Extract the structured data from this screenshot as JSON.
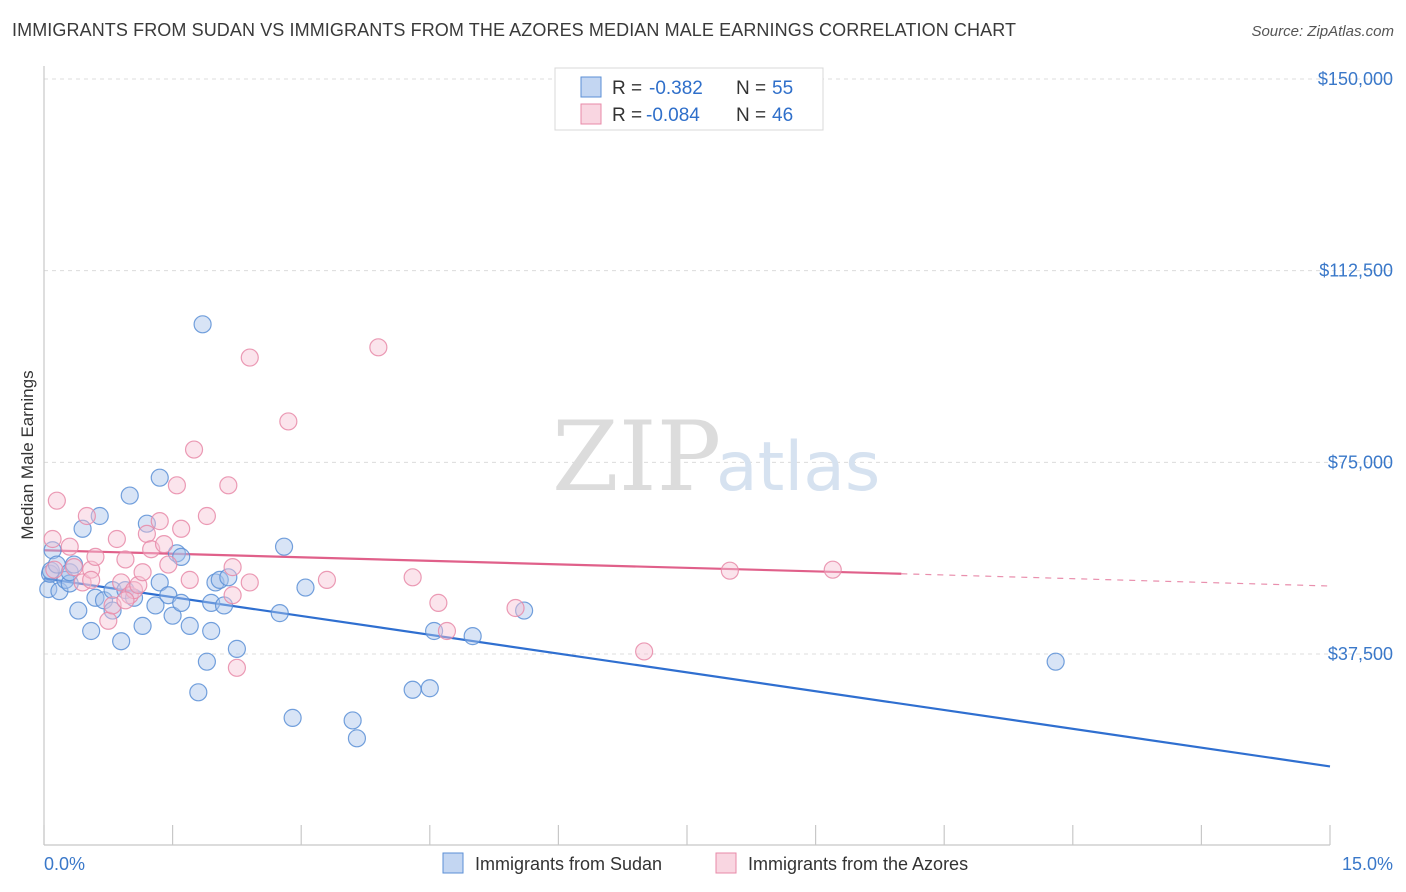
{
  "title": "IMMIGRANTS FROM SUDAN VS IMMIGRANTS FROM THE AZORES MEDIAN MALE EARNINGS CORRELATION CHART",
  "source": "Source: ZipAtlas.com",
  "watermark": {
    "zip": "ZIP",
    "atlas": "atlas"
  },
  "legend_top": {
    "rows": [
      {
        "r_label": "R =",
        "r_value": "-0.382",
        "n_label": "N =",
        "n_value": "55"
      },
      {
        "r_label": "R =",
        "r_value": "-0.084",
        "n_label": "N =",
        "n_value": "46"
      }
    ]
  },
  "chart_data": {
    "type": "scatter",
    "title": "IMMIGRANTS FROM SUDAN VS IMMIGRANTS FROM THE AZORES MEDIAN MALE EARNINGS CORRELATION CHART",
    "xlabel": "",
    "ylabel": "Median Male Earnings",
    "xlim": [
      0,
      15
    ],
    "ylim": [
      0,
      157000
    ],
    "x_tick_labels": [
      "0.0%",
      "15.0%"
    ],
    "y_ticks": [
      37500,
      75000,
      112500,
      150000
    ],
    "y_tick_labels": [
      "$37,500",
      "$75,000",
      "$112,500",
      "$150,000"
    ],
    "grid": true,
    "legend_position": "bottom-center",
    "series": [
      {
        "name": "Immigrants from Sudan",
        "color": "#5b8fd6",
        "fill": "#a9c4ec",
        "r": -0.382,
        "n": 55,
        "trend": {
          "x0": 0,
          "y0": 52300,
          "x1": 15,
          "y1": 15500,
          "style": "solid"
        },
        "points": [
          [
            0.05,
            50200
          ],
          [
            0.07,
            53200
          ],
          [
            0.08,
            53800
          ],
          [
            0.1,
            57800
          ],
          [
            0.15,
            55000
          ],
          [
            0.18,
            49800
          ],
          [
            0.25,
            52000
          ],
          [
            0.3,
            51300
          ],
          [
            0.3,
            53500
          ],
          [
            0.35,
            55000
          ],
          [
            0.4,
            46000
          ],
          [
            0.45,
            62000
          ],
          [
            0.55,
            42000
          ],
          [
            0.6,
            48500
          ],
          [
            0.65,
            64500
          ],
          [
            0.7,
            48000
          ],
          [
            0.8,
            50000
          ],
          [
            0.8,
            46000
          ],
          [
            0.9,
            40000
          ],
          [
            0.95,
            50000
          ],
          [
            1.0,
            68500
          ],
          [
            1.05,
            48500
          ],
          [
            1.15,
            43000
          ],
          [
            1.2,
            63000
          ],
          [
            1.3,
            47000
          ],
          [
            1.35,
            51500
          ],
          [
            1.35,
            72000
          ],
          [
            1.45,
            49000
          ],
          [
            1.5,
            45000
          ],
          [
            1.55,
            57200
          ],
          [
            1.6,
            47500
          ],
          [
            1.6,
            56500
          ],
          [
            1.7,
            43000
          ],
          [
            1.8,
            30000
          ],
          [
            1.85,
            102000
          ],
          [
            1.9,
            36000
          ],
          [
            1.95,
            42000
          ],
          [
            1.95,
            47500
          ],
          [
            2.0,
            51500
          ],
          [
            2.05,
            52000
          ],
          [
            2.1,
            47000
          ],
          [
            2.15,
            52500
          ],
          [
            2.25,
            38500
          ],
          [
            2.75,
            45500
          ],
          [
            2.8,
            58500
          ],
          [
            2.9,
            25000
          ],
          [
            3.05,
            50500
          ],
          [
            3.6,
            24500
          ],
          [
            3.65,
            21000
          ],
          [
            4.3,
            30500
          ],
          [
            4.5,
            30800
          ],
          [
            4.55,
            42000
          ],
          [
            5.0,
            41000
          ],
          [
            5.6,
            46000
          ],
          [
            11.8,
            36000
          ]
        ]
      },
      {
        "name": "Immigrants from the Azores",
        "color": "#e88aa8",
        "fill": "#f6c4d4",
        "r": -0.084,
        "n": 46,
        "trend": {
          "x0": 0,
          "y0": 57800,
          "x1": 10.0,
          "y1": 53200,
          "x_dash_end": 15,
          "y_dash_end": 50800,
          "style": "solid-then-dashed"
        },
        "points": [
          [
            0.1,
            60000
          ],
          [
            0.12,
            54000
          ],
          [
            0.15,
            67500
          ],
          [
            0.3,
            58500
          ],
          [
            0.35,
            54500
          ],
          [
            0.45,
            51500
          ],
          [
            0.5,
            64500
          ],
          [
            0.55,
            54000
          ],
          [
            0.55,
            52000
          ],
          [
            0.6,
            56500
          ],
          [
            0.75,
            44000
          ],
          [
            0.8,
            47000
          ],
          [
            0.85,
            60000
          ],
          [
            0.9,
            51500
          ],
          [
            0.95,
            56000
          ],
          [
            1.0,
            49000
          ],
          [
            1.05,
            50000
          ],
          [
            1.1,
            51000
          ],
          [
            1.15,
            53500
          ],
          [
            1.2,
            61000
          ],
          [
            1.25,
            58000
          ],
          [
            1.35,
            63500
          ],
          [
            1.4,
            59000
          ],
          [
            1.45,
            55000
          ],
          [
            1.55,
            70500
          ],
          [
            1.6,
            62000
          ],
          [
            1.7,
            52000
          ],
          [
            1.75,
            77500
          ],
          [
            1.9,
            64500
          ],
          [
            2.15,
            70500
          ],
          [
            2.2,
            54500
          ],
          [
            2.2,
            49000
          ],
          [
            2.25,
            34800
          ],
          [
            2.4,
            51500
          ],
          [
            2.4,
            95500
          ],
          [
            2.85,
            83000
          ],
          [
            3.3,
            52000
          ],
          [
            3.9,
            97500
          ],
          [
            4.3,
            52500
          ],
          [
            4.6,
            47500
          ],
          [
            4.7,
            42000
          ],
          [
            5.5,
            46500
          ],
          [
            7.0,
            38000
          ],
          [
            8.0,
            53800
          ],
          [
            9.2,
            54000
          ],
          [
            0.95,
            48000
          ]
        ]
      }
    ]
  },
  "bottom_legend": [
    {
      "label": "Immigrants from Sudan"
    },
    {
      "label": "Immigrants from the Azores"
    }
  ]
}
